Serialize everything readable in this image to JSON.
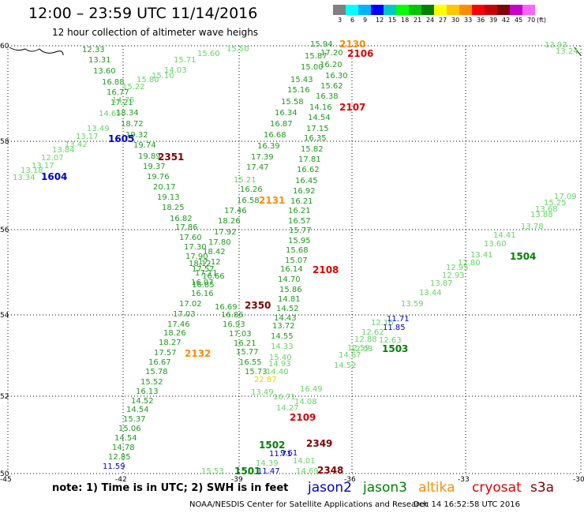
{
  "header": {
    "title": "12:00 – 23:59 UTC 11/14/2016",
    "subtitle": "12 hour collection of altimeter wave heighs"
  },
  "colorbar": {
    "colors": [
      "#808080",
      "#00ffff",
      "#00b4ff",
      "#0000ff",
      "#00c8c8",
      "#00ff00",
      "#00c800",
      "#008000",
      "#ffff00",
      "#ffc800",
      "#ff8c00",
      "#ff0000",
      "#c80000",
      "#800000",
      "#c800c8",
      "#ff64ff",
      "#ffffff"
    ],
    "labels": [
      "3",
      "6",
      "9",
      "12",
      "15",
      "18",
      "21",
      "24",
      "27",
      "30",
      "33",
      "36",
      "39",
      "42",
      "45",
      "70",
      "(ft)"
    ]
  },
  "axes": {
    "y_ticks": [
      "60",
      "58",
      "56",
      "54",
      "52",
      "50"
    ],
    "x_ticks": [
      "-45",
      "-42",
      "-39",
      "-36",
      "-33",
      "-30"
    ]
  },
  "map_data": {
    "passes": [
      {
        "id": "1605",
        "color": "#0000c8"
      },
      {
        "id": "1604",
        "color": "#0000c8"
      },
      {
        "id": "2351",
        "color": "#800000"
      },
      {
        "id": "2131",
        "color": "#ff8c00"
      },
      {
        "id": "2130",
        "color": "#ff8c00"
      },
      {
        "id": "2106",
        "color": "#e00000"
      },
      {
        "id": "2107",
        "color": "#e00000"
      },
      {
        "id": "2108",
        "color": "#e00000"
      },
      {
        "id": "1504",
        "color": "#008000"
      },
      {
        "id": "2350",
        "color": "#800000"
      },
      {
        "id": "1503",
        "color": "#008000"
      },
      {
        "id": "2132",
        "color": "#ff8c00"
      },
      {
        "id": "2109",
        "color": "#e00000"
      },
      {
        "id": "2349",
        "color": "#800000"
      },
      {
        "id": "1502",
        "color": "#008000"
      },
      {
        "id": "1501",
        "color": "#008000"
      },
      {
        "id": "2348",
        "color": "#800000"
      }
    ],
    "swh_labels": [
      "12.33",
      "13.31",
      "13.60",
      "16.88",
      "16.77",
      "17.21",
      "18.34",
      "18.72",
      "19.32",
      "19.74",
      "19.89",
      "19.37",
      "19.76",
      "20.17",
      "19.13",
      "18.25",
      "16.82",
      "17.86",
      "17.60",
      "17.30",
      "17.90",
      "18.12",
      "17.57",
      "16.66",
      "16.07",
      "16.16",
      "17.02",
      "17.03",
      "17.46",
      "18.26",
      "18.27",
      "17.57",
      "16.67",
      "15.78",
      "15.52",
      "16.13",
      "14.52",
      "14.54",
      "15.37",
      "15.06",
      "14.54",
      "14.78",
      "12.85",
      "11.59",
      "13.34",
      "13.18",
      "13.17",
      "12.07",
      "13.84",
      "13.42",
      "13.17",
      "13.49",
      "14.65",
      "14.75",
      "15.22",
      "15.80",
      "15.10",
      "14.03",
      "15.71",
      "15.60",
      "15.50",
      "15.94",
      "15.87",
      "15.00",
      "15.43",
      "15.16",
      "15.58",
      "16.34",
      "16.87",
      "16.68",
      "16.39",
      "17.39",
      "17.47",
      "16.26",
      "16.58",
      "17.46",
      "18.26",
      "17.92",
      "17.80",
      "18.42",
      "17.12",
      "17.11",
      "16.85",
      "16.69",
      "16.86",
      "16.93",
      "17.03",
      "16.21",
      "15.77",
      "16.55",
      "15.73",
      "17.20",
      "16.20",
      "16.30",
      "15.62",
      "16.38",
      "14.16",
      "14.54",
      "17.15",
      "16.35",
      "15.82",
      "17.81",
      "16.62",
      "16.45",
      "16.92",
      "16.21",
      "16.21",
      "16.57",
      "15.77",
      "15.95",
      "15.68",
      "15.07",
      "16.14",
      "14.70",
      "15.86",
      "14.81",
      "14.52",
      "14.43",
      "13.72",
      "14.55",
      "14.33",
      "15.40",
      "14.93",
      "14.40",
      "22.87",
      "13.49",
      "15.21",
      "16.71",
      "16.49",
      "14.08",
      "14.27",
      "14.52",
      "14.67",
      "12.59",
      "12.88",
      "12.03",
      "12.62",
      "12.16",
      "12.63",
      "11.85",
      "11.71",
      "13.59",
      "13.44",
      "13.87",
      "12.93",
      "12.95",
      "12.80",
      "13.41",
      "13.60",
      "14.41",
      "13.78",
      "13.88",
      "13.68",
      "15.25",
      "17.09",
      "13.93",
      "13.24",
      "14.39",
      "11.47",
      "11.71",
      "9.61",
      "14.01",
      "14.69",
      "15.53"
    ]
  },
  "note": "note:  1) Time is in UTC;  2) SWH is in feet",
  "legend": [
    {
      "label": "jason2",
      "color": "#0000c8"
    },
    {
      "label": "jason3",
      "color": "#008000"
    },
    {
      "label": "altika",
      "color": "#ff8c00"
    },
    {
      "label": "cryosat",
      "color": "#e00000"
    },
    {
      "label": "s3a",
      "color": "#800000"
    }
  ],
  "footer": "NOAA/NESDIS Center for Satellite Applications and Research",
  "footer_date": "Dec 14 16:52:58 UTC 2016"
}
